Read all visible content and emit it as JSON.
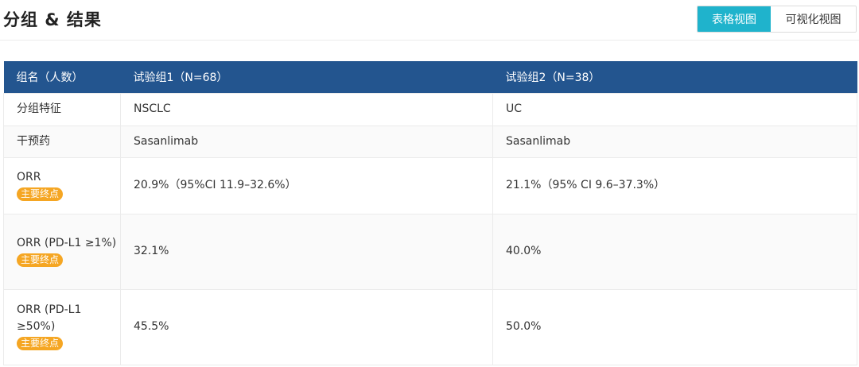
{
  "header": {
    "title": "分组 & 结果",
    "view_toggle": {
      "table_label": "表格视图",
      "visual_label": "可视化视图",
      "selected": "table",
      "selected_color": "#1fb3cc"
    }
  },
  "table": {
    "header_color": "#23558f",
    "columns": [
      "组名（人数）",
      "试验组1（N=68）",
      "试验组2（N=38）"
    ],
    "rows": [
      {
        "label": "分组特征",
        "badge": "",
        "cells": [
          "NSCLC",
          "UC"
        ]
      },
      {
        "label": "干预药",
        "badge": "",
        "cells": [
          "Sasanlimab",
          "Sasanlimab"
        ]
      },
      {
        "label": "ORR",
        "badge": "主要终点",
        "cells": [
          "20.9%（95%CI 11.9–32.6%）",
          "21.1%（95% CI 9.6–37.3%）"
        ]
      },
      {
        "label": "ORR (PD-L1 ≥1%)",
        "badge": "主要终点",
        "cells": [
          "32.1%",
          "40.0%"
        ]
      },
      {
        "label": "ORR (PD-L1 ≥50%)",
        "badge": "主要终点",
        "cells": [
          "45.5%",
          "50.0%"
        ]
      }
    ],
    "badge_color": "#f5a623"
  }
}
